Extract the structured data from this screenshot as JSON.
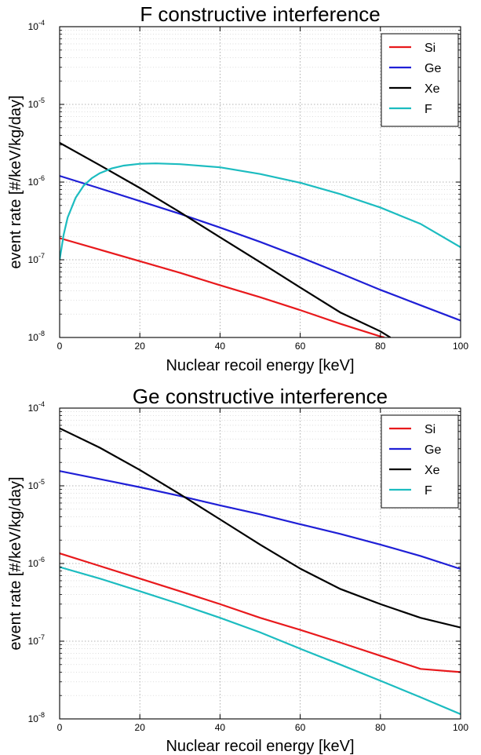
{
  "chart_data": [
    {
      "type": "line",
      "title": "F constructive interference",
      "xlabel": "Nuclear recoil energy [keV]",
      "ylabel": "event rate [#/keV/kg/day]",
      "xlim": [
        0,
        100
      ],
      "ylim": [
        1e-08,
        0.0001
      ],
      "yscale": "log",
      "grid": true,
      "legend_position": "top-right",
      "x_ticks": [
        "0",
        "20",
        "40",
        "60",
        "80",
        "100"
      ],
      "y_ticks": [
        {
          "base": "10",
          "exp": "-8"
        },
        {
          "base": "10",
          "exp": "-7"
        },
        {
          "base": "10",
          "exp": "-6"
        },
        {
          "base": "10",
          "exp": "-5"
        },
        {
          "base": "10",
          "exp": "-4"
        }
      ],
      "series": [
        {
          "name": "Si",
          "color": "#e8191c",
          "x": [
            0,
            10,
            20,
            30,
            40,
            50,
            60,
            70,
            80,
            81
          ],
          "y": [
            1.9e-07,
            1.35e-07,
            9.6e-08,
            6.8e-08,
            4.7e-08,
            3.3e-08,
            2.25e-08,
            1.5e-08,
            1.03e-08,
            1e-08
          ]
        },
        {
          "name": "Ge",
          "color": "#1f1fd6",
          "x": [
            0,
            10,
            20,
            30,
            40,
            50,
            60,
            70,
            80,
            90,
            100
          ],
          "y": [
            1.2e-06,
            8.3e-07,
            5.7e-07,
            3.9e-07,
            2.6e-07,
            1.7e-07,
            1.08e-07,
            6.7e-08,
            4.1e-08,
            2.6e-08,
            1.65e-08
          ]
        },
        {
          "name": "Xe",
          "color": "#000000",
          "x": [
            0,
            10,
            20,
            30,
            40,
            50,
            60,
            70,
            80,
            82.5
          ],
          "y": [
            3.2e-06,
            1.65e-06,
            8.4e-07,
            4.1e-07,
            1.95e-07,
            9.3e-08,
            4.4e-08,
            2.1e-08,
            1.2e-08,
            1e-08
          ]
        },
        {
          "name": "F",
          "color": "#1cbcc0",
          "x": [
            0,
            1,
            2,
            4,
            6,
            8,
            10,
            13,
            16,
            20,
            24,
            30,
            40,
            50,
            60,
            70,
            80,
            90,
            100
          ],
          "y": [
            1e-07,
            2.1e-07,
            3.5e-07,
            6.3e-07,
            9e-07,
            1.12e-06,
            1.3e-06,
            1.5e-06,
            1.63e-06,
            1.72e-06,
            1.74e-06,
            1.7e-06,
            1.55e-06,
            1.27e-06,
            9.8e-07,
            7e-07,
            4.7e-07,
            2.9e-07,
            1.45e-07
          ]
        }
      ]
    },
    {
      "type": "line",
      "title": "Ge constructive interference",
      "xlabel": "Nuclear recoil energy [keV]",
      "ylabel": "event rate [#/keV/kg/day]",
      "xlim": [
        0,
        100
      ],
      "ylim": [
        1e-08,
        0.0001
      ],
      "yscale": "log",
      "grid": true,
      "legend_position": "top-right",
      "x_ticks": [
        "0",
        "20",
        "40",
        "60",
        "80",
        "100"
      ],
      "y_ticks": [
        {
          "base": "10",
          "exp": "-8"
        },
        {
          "base": "10",
          "exp": "-7"
        },
        {
          "base": "10",
          "exp": "-6"
        },
        {
          "base": "10",
          "exp": "-5"
        },
        {
          "base": "10",
          "exp": "-4"
        }
      ],
      "series": [
        {
          "name": "Si",
          "color": "#e8191c",
          "x": [
            0,
            10,
            20,
            30,
            40,
            50,
            60,
            70,
            80,
            90,
            100
          ],
          "y": [
            1.35e-06,
            9.3e-07,
            6.4e-07,
            4.4e-07,
            3e-07,
            2e-07,
            1.4e-07,
            9.6e-08,
            6.5e-08,
            4.4e-08,
            4e-08
          ]
        },
        {
          "name": "Ge",
          "color": "#1f1fd6",
          "x": [
            0,
            10,
            20,
            30,
            40,
            50,
            60,
            70,
            80,
            90,
            100
          ],
          "y": [
            1.55e-05,
            1.22e-05,
            9.6e-06,
            7.4e-06,
            5.6e-06,
            4.3e-06,
            3.2e-06,
            2.4e-06,
            1.75e-06,
            1.25e-06,
            8.5e-07
          ]
        },
        {
          "name": "Xe",
          "color": "#000000",
          "x": [
            0,
            10,
            20,
            30,
            40,
            50,
            60,
            70,
            80,
            90,
            100
          ],
          "y": [
            5.5e-05,
            3.1e-05,
            1.6e-05,
            7.8e-06,
            3.7e-06,
            1.75e-06,
            8.6e-07,
            4.7e-07,
            3e-07,
            2e-07,
            1.5e-07
          ]
        },
        {
          "name": "F",
          "color": "#1cbcc0",
          "x": [
            0,
            10,
            20,
            30,
            40,
            50,
            60,
            70,
            80,
            90,
            100
          ],
          "y": [
            9e-07,
            6.4e-07,
            4.4e-07,
            3e-07,
            2e-07,
            1.3e-07,
            8e-08,
            5e-08,
            3.1e-08,
            1.9e-08,
            1.15e-08
          ]
        }
      ]
    }
  ]
}
